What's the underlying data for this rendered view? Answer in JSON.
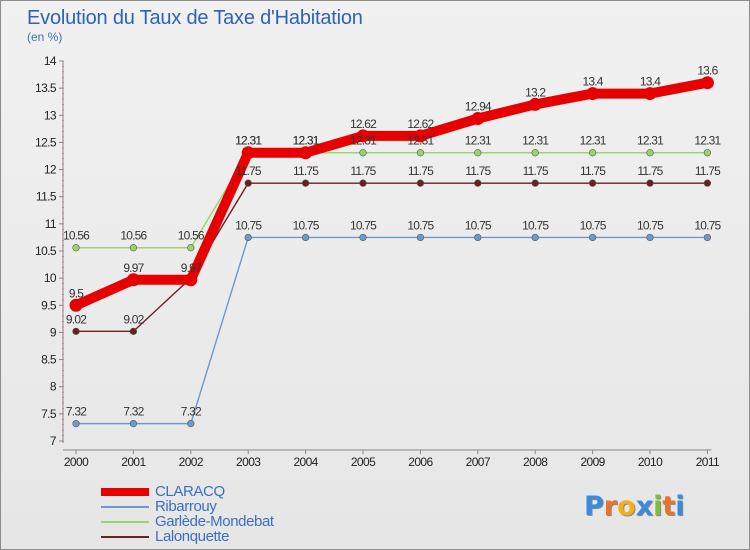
{
  "header": {
    "title": "Evolution du Taux de Taxe d'Habitation",
    "unit": "(en %)"
  },
  "brand": {
    "logo_letters": [
      "P",
      "r",
      "o",
      "x",
      "i",
      "t",
      "i"
    ],
    "logo_colors": [
      "#3a8be0",
      "#e8732a",
      "#f0b020",
      "#3a8be0",
      "#7dbf3a",
      "#e8732a",
      "#3a8be0"
    ]
  },
  "chart_data": {
    "type": "line",
    "title": "Evolution du Taux de Taxe d'Habitation",
    "ylabel": "(en %)",
    "xlabel": "",
    "ylim": [
      7,
      14
    ],
    "yticks": [
      "7",
      "7.5",
      "8",
      "8.5",
      "9",
      "9.5",
      "10",
      "10.5",
      "11",
      "11.5",
      "12",
      "12.5",
      "13",
      "13.5",
      "14"
    ],
    "categories": [
      "2000",
      "2001",
      "2002",
      "2003",
      "2004",
      "2005",
      "2006",
      "2007",
      "2008",
      "2009",
      "2010",
      "2011"
    ],
    "series": [
      {
        "name": "Lalonquette",
        "color": "#6b2020",
        "values": [
          9.02,
          9.02,
          10.0,
          11.75,
          11.75,
          11.75,
          11.75,
          11.75,
          11.75,
          11.75,
          11.75,
          11.75
        ],
        "labels": [
          "9.02",
          "9.02",
          "",
          "11.75",
          "11.75",
          "11.75",
          "11.75",
          "11.75",
          "11.75",
          "11.75",
          "11.75",
          "11.75"
        ]
      },
      {
        "name": "Ribarrouy",
        "color": "#6a9ad0",
        "values": [
          7.32,
          7.32,
          7.32,
          10.75,
          10.75,
          10.75,
          10.75,
          10.75,
          10.75,
          10.75,
          10.75,
          10.75
        ],
        "labels": [
          "7.32",
          "7.32",
          "7.32",
          "10.75",
          "10.75",
          "10.75",
          "10.75",
          "10.75",
          "10.75",
          "10.75",
          "10.75",
          "10.75"
        ]
      },
      {
        "name": "Garlède-Mondebat",
        "color": "#99d66a",
        "values": [
          10.56,
          10.56,
          10.56,
          12.31,
          12.31,
          12.31,
          12.31,
          12.31,
          12.31,
          12.31,
          12.31,
          12.31
        ],
        "labels": [
          "10.56",
          "10.56",
          "10.56",
          "12.31",
          "12.31",
          "12.31",
          "12.31",
          "12.31",
          "12.31",
          "12.31",
          "12.31",
          "12.31"
        ]
      },
      {
        "name": "CLARACQ",
        "color": "#e60000",
        "values": [
          9.5,
          9.97,
          9.97,
          12.31,
          12.31,
          12.62,
          12.62,
          12.94,
          13.2,
          13.4,
          13.4,
          13.6
        ],
        "labels": [
          "9.5",
          "9.97",
          "9.97",
          "12.31",
          "12.31",
          "12.62",
          "12.62",
          "12.94",
          "13.2",
          "13.4",
          "13.4",
          "13.6"
        ]
      }
    ],
    "legend": [
      "CLARACQ",
      "Ribarrouy",
      "Garlède-Mondebat",
      "Lalonquette"
    ],
    "legend_position": "bottom-left",
    "grid": false
  }
}
